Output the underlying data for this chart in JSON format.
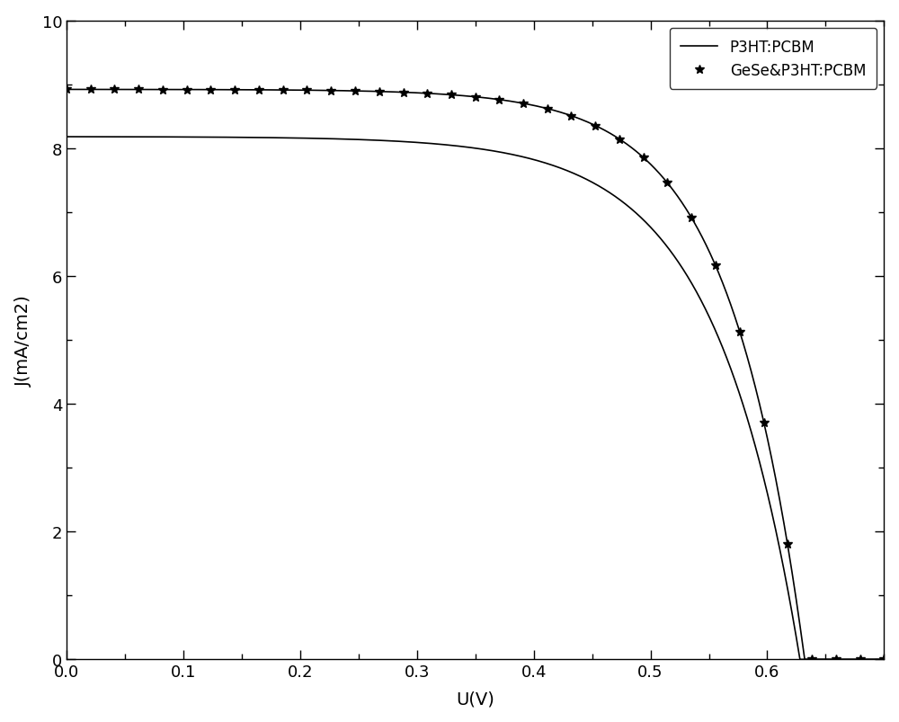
{
  "title": "",
  "xlabel": "U(V)",
  "ylabel": "J(mA/cm2)",
  "xlim": [
    0,
    0.7
  ],
  "ylim": [
    0,
    10
  ],
  "xticks": [
    0,
    0.1,
    0.2,
    0.3,
    0.4,
    0.5,
    0.6
  ],
  "yticks": [
    0,
    2,
    4,
    6,
    8,
    10
  ],
  "line1_label": "P3HT:PCBM",
  "line2_label": "GeSe&P3HT:PCBM",
  "line1_color": "#000000",
  "line2_color": "#000000",
  "background_color": "#ffffff",
  "p3ht_Jsc": 8.18,
  "p3ht_Voc": 0.628,
  "p3ht_nVt": 0.073,
  "gese_Jsc": 8.92,
  "gese_Voc": 0.632,
  "gese_nVt": 0.065,
  "n_markers": 35,
  "marker_size": 7,
  "figsize": [
    10.0,
    8.04
  ],
  "dpi": 100
}
